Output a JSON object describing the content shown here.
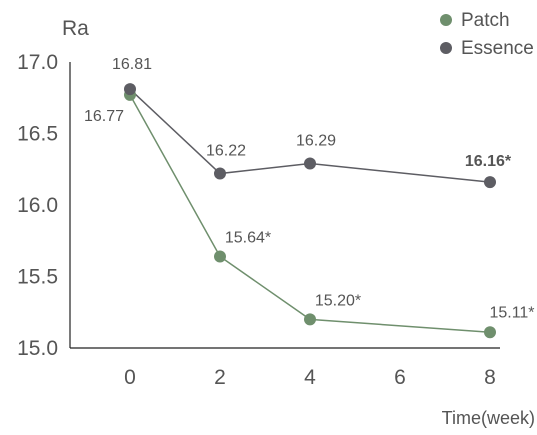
{
  "chart_data": {
    "type": "line",
    "ylabel": "Ra",
    "xlabel": "Time(week)",
    "x_ticks": [
      0,
      2,
      4,
      6,
      8
    ],
    "y_ticks": [
      "17.0",
      "16.5",
      "16.0",
      "15.5",
      "15.0"
    ],
    "ylim": [
      15.0,
      17.0
    ],
    "xlim": [
      0,
      8
    ],
    "legend_position": "top-right",
    "grid": false,
    "series": [
      {
        "name": "Patch",
        "color": "#6f8f6d",
        "points": [
          {
            "x": 0,
            "y": 16.77,
            "label": "16.77",
            "bold": false
          },
          {
            "x": 2,
            "y": 15.64,
            "label": "15.64*",
            "bold": false
          },
          {
            "x": 4,
            "y": 15.2,
            "label": "15.20*",
            "bold": false
          },
          {
            "x": 8,
            "y": 15.11,
            "label": "15.11*",
            "bold": false
          }
        ]
      },
      {
        "name": "Essence",
        "color": "#5d5d63",
        "points": [
          {
            "x": 0,
            "y": 16.81,
            "label": "16.81",
            "bold": false
          },
          {
            "x": 2,
            "y": 16.22,
            "label": "16.22",
            "bold": false
          },
          {
            "x": 4,
            "y": 16.29,
            "label": "16.29",
            "bold": false
          },
          {
            "x": 8,
            "y": 16.16,
            "label": "16.16*",
            "bold": true
          }
        ]
      }
    ]
  }
}
